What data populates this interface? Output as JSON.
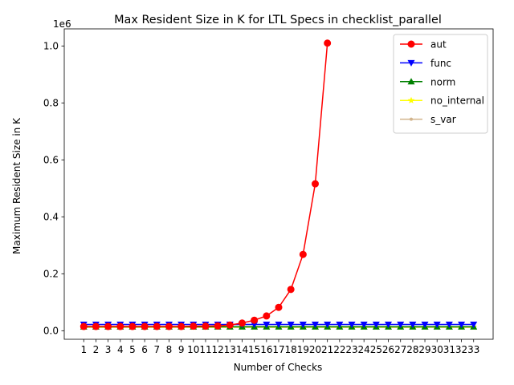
{
  "chart_data": {
    "type": "line",
    "title": "Max Resident Size in K for LTL Specs in checklist_parallel",
    "xlabel": "Number of Checks",
    "ylabel": "Maximum Resident Size in K",
    "offset_label": "1e6",
    "x": [
      1,
      2,
      3,
      4,
      5,
      6,
      7,
      8,
      9,
      10,
      11,
      12,
      13,
      14,
      15,
      16,
      17,
      18,
      19,
      20,
      21,
      22,
      23,
      24,
      25,
      26,
      27,
      28,
      29,
      30,
      31,
      32,
      33
    ],
    "ylim": [
      -30000,
      1060000
    ],
    "yticks": [
      0,
      200000,
      400000,
      600000,
      800000,
      1000000
    ],
    "ytick_labels": [
      "0.0",
      "0.2",
      "0.4",
      "0.6",
      "0.8",
      "1.0"
    ],
    "grid": false,
    "legend_position": "top-right",
    "series": [
      {
        "name": "aut",
        "color": "#ff0000",
        "marker": "circle",
        "x": [
          1,
          2,
          3,
          4,
          5,
          6,
          7,
          8,
          9,
          10,
          11,
          12,
          13,
          14,
          15,
          16,
          17,
          18,
          19,
          20,
          21
        ],
        "values": [
          15000,
          15000,
          15000,
          15000,
          15000,
          15000,
          15000,
          15000,
          15000,
          16000,
          16000,
          17000,
          20000,
          27000,
          37000,
          52000,
          82000,
          145000,
          268000,
          516000,
          1010000
        ]
      },
      {
        "name": "func",
        "color": "#0000ff",
        "marker": "triangle-down",
        "values": [
          22000,
          22000,
          22000,
          22000,
          22000,
          22000,
          22000,
          22000,
          22000,
          22000,
          22000,
          22000,
          22000,
          22000,
          22000,
          22000,
          22000,
          22000,
          22000,
          22000,
          22000,
          22000,
          22000,
          22000,
          22000,
          22000,
          22000,
          22000,
          22000,
          22000,
          22000,
          22000,
          22000
        ]
      },
      {
        "name": "norm",
        "color": "#008000",
        "marker": "triangle-up",
        "values": [
          14000,
          14000,
          14000,
          14000,
          14000,
          14000,
          14000,
          14000,
          14000,
          14000,
          14000,
          14000,
          14000,
          14000,
          14000,
          14000,
          14000,
          14000,
          14000,
          14000,
          14000,
          14000,
          14000,
          14000,
          14000,
          14000,
          14000,
          14000,
          14000,
          14000,
          14000,
          14000,
          14000
        ]
      },
      {
        "name": "no_internal",
        "color": "#ffff00",
        "marker": "star",
        "values": [
          13000,
          13000,
          13000,
          13000,
          13000,
          13000,
          13000,
          13000,
          13000,
          13000,
          13000,
          13000,
          13000,
          13000,
          13000,
          13000,
          13000,
          13000,
          13000,
          13000,
          13000,
          13000,
          13000,
          13000,
          13000,
          13000,
          13000,
          13000,
          13000,
          13000,
          13000,
          13000,
          13000
        ]
      },
      {
        "name": "s_var",
        "color": "#d2b48c",
        "marker": "point",
        "values": [
          12000,
          12000,
          12000,
          12000,
          12000,
          12000,
          12000,
          12000,
          12000,
          12000,
          12000,
          12000,
          12000,
          12000,
          12000,
          12000,
          12000,
          12000,
          12000,
          12000,
          12000,
          12000,
          12000,
          12000,
          12000,
          12000,
          12000,
          12000,
          12000,
          12000,
          12000,
          12000,
          12000
        ]
      }
    ]
  }
}
